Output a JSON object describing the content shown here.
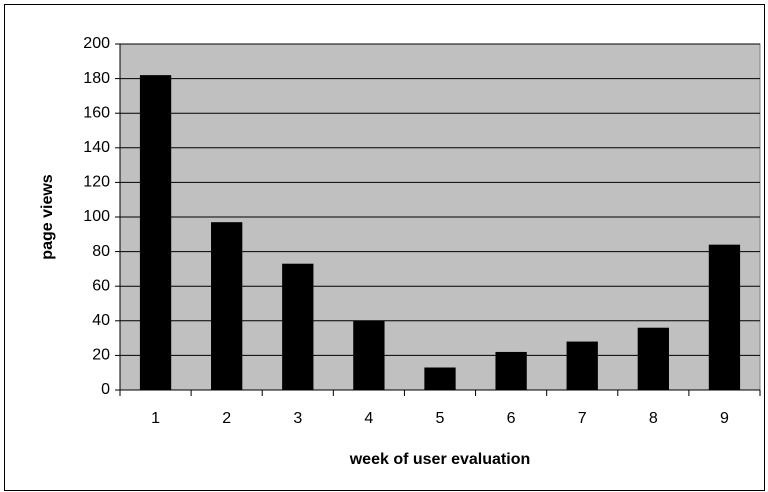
{
  "chart_data": {
    "type": "bar",
    "x_label": "week of user evaluation",
    "y_label": "page views",
    "categories": [
      "1",
      "2",
      "3",
      "4",
      "5",
      "6",
      "7",
      "8",
      "9"
    ],
    "values": [
      182,
      97,
      73,
      40,
      13,
      22,
      28,
      36,
      84
    ],
    "color": "#000000",
    "plot_background": "#c0c0c0",
    "ylim": [
      0,
      200
    ],
    "yticks": [
      0,
      20,
      40,
      60,
      80,
      100,
      120,
      140,
      160,
      180,
      200
    ],
    "grid": true
  }
}
